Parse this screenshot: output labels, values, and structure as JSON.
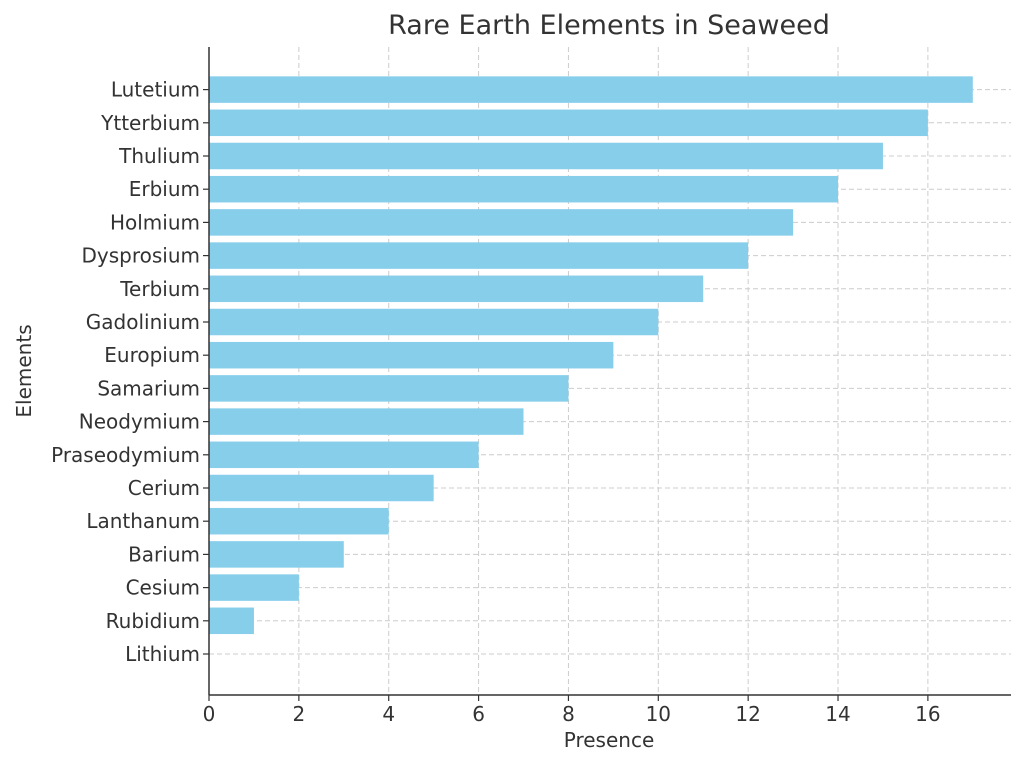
{
  "chart_data": {
    "type": "bar",
    "orientation": "horizontal",
    "title": "Rare Earth Elements in Seaweed",
    "xlabel": "Presence",
    "ylabel": "Elements",
    "categories": [
      "Lithium",
      "Rubidium",
      "Cesium",
      "Barium",
      "Lanthanum",
      "Cerium",
      "Praseodymium",
      "Neodymium",
      "Samarium",
      "Europium",
      "Gadolinium",
      "Terbium",
      "Dysprosium",
      "Holmium",
      "Erbium",
      "Thulium",
      "Ytterbium",
      "Lutetium"
    ],
    "values": [
      0,
      1,
      2,
      3,
      4,
      5,
      6,
      7,
      8,
      9,
      10,
      11,
      12,
      13,
      14,
      15,
      16,
      17
    ],
    "xlim": [
      0,
      17.85
    ],
    "xticks": [
      0,
      2,
      4,
      6,
      8,
      10,
      12,
      14,
      16
    ],
    "grid": true,
    "bar_color": "#87CEEB"
  }
}
